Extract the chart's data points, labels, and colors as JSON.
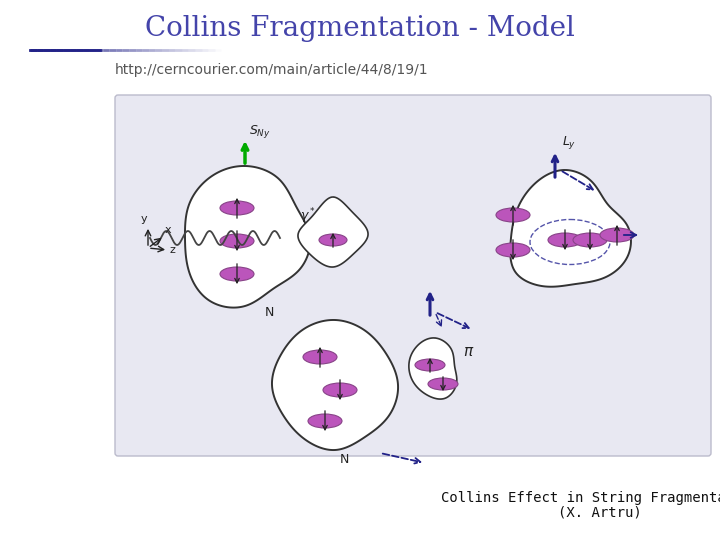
{
  "title": "Collins Fragmentation - Model",
  "title_color": "#4444aa",
  "title_fontsize": 20,
  "url_text": "http://cerncourier.com/main/article/44/8/19/1",
  "url_fontsize": 10,
  "url_color": "#555555",
  "footer_line1": "Collins Effect in String Fragmentation",
  "footer_line2": "(X. Artru)",
  "footer_fontsize": 10,
  "footer_color": "#111111",
  "bg_color": "#ffffff",
  "diagram_bg": "#e8e8f2",
  "nucleon_color": "#bb55bb",
  "nucleon_edge": "#884488",
  "arrow_black": "#222222",
  "green_arrow": "#00aa00",
  "blue_arrow": "#222288",
  "wavy_color": "#444444"
}
